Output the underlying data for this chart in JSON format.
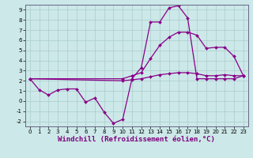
{
  "xlabel": "Windchill (Refroidissement éolien,°C)",
  "xlim": [
    -0.5,
    23.5
  ],
  "ylim": [
    -2.5,
    9.5
  ],
  "xticks": [
    0,
    1,
    2,
    3,
    4,
    5,
    6,
    7,
    8,
    9,
    10,
    11,
    12,
    13,
    14,
    15,
    16,
    17,
    18,
    19,
    20,
    21,
    22,
    23
  ],
  "yticks": [
    -2,
    -1,
    0,
    1,
    2,
    3,
    4,
    5,
    6,
    7,
    8,
    9
  ],
  "bg_color": "#cce8e8",
  "grid_color": "#aacccc",
  "line_color": "#880088",
  "line1_x": [
    0,
    1,
    2,
    3,
    4,
    5,
    6,
    7,
    8,
    9,
    10,
    11,
    12,
    13,
    14,
    15,
    16,
    17,
    18,
    19,
    20,
    21,
    22,
    23
  ],
  "line1_y": [
    2.2,
    1.1,
    0.6,
    1.1,
    1.2,
    1.2,
    -0.1,
    0.3,
    -1.1,
    -2.2,
    -1.8,
    2.2,
    3.3,
    7.8,
    7.8,
    9.2,
    9.4,
    8.2,
    2.2,
    2.2,
    2.2,
    2.2,
    2.2,
    2.5
  ],
  "line2_x": [
    0,
    10,
    11,
    12,
    13,
    14,
    15,
    16,
    17,
    18,
    19,
    20,
    21,
    22,
    23
  ],
  "line2_y": [
    2.2,
    2.2,
    2.5,
    2.8,
    4.2,
    5.5,
    6.3,
    6.8,
    6.8,
    6.5,
    5.2,
    5.3,
    5.3,
    4.4,
    2.5
  ],
  "line3_x": [
    0,
    10,
    11,
    12,
    13,
    14,
    15,
    16,
    17,
    18,
    19,
    20,
    21,
    22,
    23
  ],
  "line3_y": [
    2.2,
    2.0,
    2.1,
    2.2,
    2.4,
    2.6,
    2.7,
    2.8,
    2.8,
    2.7,
    2.5,
    2.5,
    2.6,
    2.5,
    2.5
  ],
  "marker": "D",
  "markersize": 2,
  "linewidth": 0.9,
  "tick_fontsize": 5,
  "label_fontsize": 6.5
}
